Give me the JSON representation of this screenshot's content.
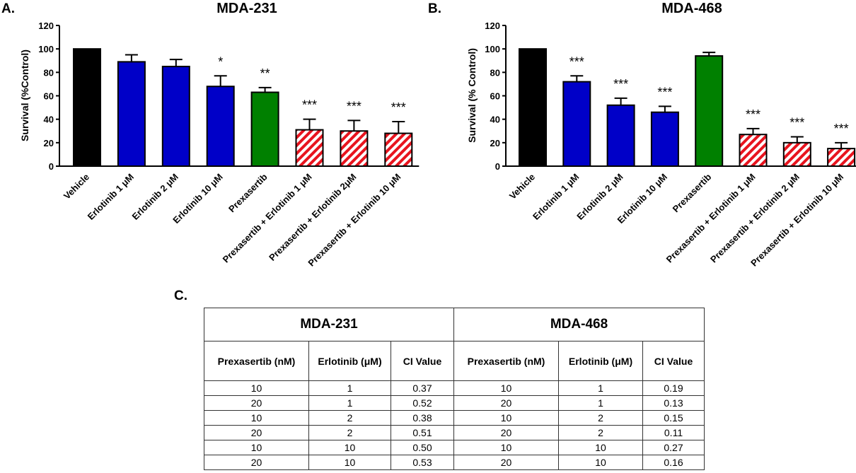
{
  "panels": [
    {
      "id": "A",
      "letter": "A.",
      "title": "MDA-231",
      "ylabel": "Survival (%Control)"
    },
    {
      "id": "B",
      "letter": "B.",
      "title": "MDA-468",
      "ylabel": "Survival (% Control)"
    }
  ],
  "chart_data": [
    {
      "type": "bar",
      "title": "MDA-231",
      "ylabel": "Survival (%Control)",
      "ylim": [
        0,
        120
      ],
      "yticks": [
        0,
        20,
        40,
        60,
        80,
        100,
        120
      ],
      "categories": [
        "Vehicle",
        "Erlotinib 1 μM",
        "Erlotinib 2 μM",
        "Erlotinib 10 μM",
        "Prexasertib",
        "Prexasertib + Erlotinib 1 μM",
        "Prexasertib + Erlotinib 2μM",
        "Prexasertib + Erlotinib 10 μM"
      ],
      "values": [
        100,
        89,
        85,
        68,
        63,
        31,
        30,
        28
      ],
      "errors": [
        0,
        6,
        6,
        9,
        4,
        9,
        9,
        10
      ],
      "significance": [
        "",
        "",
        "",
        "*",
        "**",
        "***",
        "***",
        "***"
      ],
      "colors": [
        "#000000",
        "#0000c8",
        "#0000c8",
        "#0000c8",
        "#008000",
        "hatch",
        "hatch",
        "hatch"
      ]
    },
    {
      "type": "bar",
      "title": "MDA-468",
      "ylabel": "Survival (% Control)",
      "ylim": [
        0,
        120
      ],
      "yticks": [
        0,
        20,
        40,
        60,
        80,
        100,
        120
      ],
      "categories": [
        "Vehicle",
        "Erlotinib 1 μM",
        "Erlotinib 2 μM",
        "Erlotinib 10 μM",
        "Prexasertib",
        "Prexasertib + Erlotinib 1 μM",
        "Prexasertib + Erlotinib 2 μM",
        "Prexasertib + Erlotinib 10 μM"
      ],
      "values": [
        100,
        72,
        52,
        46,
        94,
        27,
        20,
        15
      ],
      "errors": [
        0,
        5,
        6,
        5,
        3,
        5,
        5,
        5
      ],
      "significance": [
        "",
        "***",
        "***",
        "***",
        "",
        "***",
        "***",
        "***"
      ],
      "colors": [
        "#000000",
        "#0000c8",
        "#0000c8",
        "#0000c8",
        "#008000",
        "hatch",
        "hatch",
        "hatch"
      ]
    }
  ],
  "table": {
    "letter": "C.",
    "groups": [
      "MDA-231",
      "MDA-468"
    ],
    "headers": [
      "Prexasertib  (nM)",
      "Erlotinib (μM)",
      "CI Value",
      "Prexasertib  (nM)",
      "Erlotinib (μM)",
      "CI Value"
    ],
    "rows": [
      [
        "10",
        "1",
        "0.37",
        "10",
        "1",
        "0.19"
      ],
      [
        "20",
        "1",
        "0.52",
        "20",
        "1",
        "0.13"
      ],
      [
        "10",
        "2",
        "0.38",
        "10",
        "2",
        "0.15"
      ],
      [
        "20",
        "2",
        "0.51",
        "20",
        "2",
        "0.11"
      ],
      [
        "10",
        "10",
        "0.50",
        "10",
        "10",
        "0.27"
      ],
      [
        "20",
        "10",
        "0.53",
        "20",
        "10",
        "0.16"
      ]
    ]
  },
  "colors": {
    "vehicle": "#000000",
    "erlotinib": "#0000c8",
    "prexasertib": "#008000",
    "hatch_stripe": "#e8141e"
  }
}
